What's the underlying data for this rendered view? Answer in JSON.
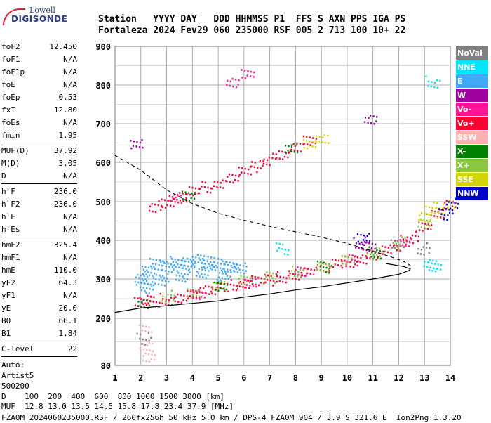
{
  "logo": {
    "line1": "Lowell",
    "line2": "DIGISONDE"
  },
  "header": {
    "row1": "Station   YYYY DAY   DDD HHMMSS P1  FFS S AXN PPS IGA PS",
    "row2": "Fortaleza 2024 Fev29 060 235000 RSF 005 2 713 100 10+ 22"
  },
  "params_group1": [
    {
      "name": "foF2",
      "value": "12.450"
    },
    {
      "name": "foF1",
      "value": "N/A"
    },
    {
      "name": "foF1p",
      "value": "N/A"
    },
    {
      "name": "foE",
      "value": "N/A"
    },
    {
      "name": "foEp",
      "value": "0.53"
    },
    {
      "name": "fxI",
      "value": "12.80"
    },
    {
      "name": "foEs",
      "value": "N/A"
    },
    {
      "name": "fmin",
      "value": "1.95"
    }
  ],
  "params_group2": [
    {
      "name": "MUF(D)",
      "value": "37.92"
    },
    {
      "name": "M(D)",
      "value": "3.05"
    },
    {
      "name": "D",
      "value": "N/A"
    }
  ],
  "params_group3": [
    {
      "name": "h`F",
      "value": "236.0"
    },
    {
      "name": "h`F2",
      "value": "236.0"
    },
    {
      "name": "h`E",
      "value": "N/A"
    },
    {
      "name": "h`Es",
      "value": "N/A"
    }
  ],
  "params_group4": [
    {
      "name": "hmF2",
      "value": "325.4"
    },
    {
      "name": "hmF1",
      "value": "N/A"
    },
    {
      "name": "hmE",
      "value": "110.0"
    },
    {
      "name": "yF2",
      "value": "64.3"
    },
    {
      "name": "yF1",
      "value": "N/A"
    },
    {
      "name": "yE",
      "value": "20.0"
    },
    {
      "name": "B0",
      "value": "66.1"
    },
    {
      "name": "B1",
      "value": "1.84"
    }
  ],
  "params_group5": [
    {
      "name": "C-level",
      "value": "22"
    }
  ],
  "auto": {
    "line1": "Auto:",
    "line2": "Artist5",
    "line3": "500200"
  },
  "legend": [
    {
      "label": "NoVal",
      "color": "#808080"
    },
    {
      "label": "NNE",
      "color": "#00e5ff"
    },
    {
      "label": "E",
      "color": "#3fa9f5"
    },
    {
      "label": "W",
      "color": "#a000a0"
    },
    {
      "label": "Vo-",
      "color": "#ff1493"
    },
    {
      "label": "Vo+",
      "color": "#ff0033"
    },
    {
      "label": "SSW",
      "color": "#ffb0b0"
    },
    {
      "label": "X-",
      "color": "#008000"
    },
    {
      "label": "X+",
      "color": "#8cc63f"
    },
    {
      "label": "SSE",
      "color": "#d4d400"
    },
    {
      "label": "NNW",
      "color": "#0000cc"
    }
  ],
  "footer": {
    "row1": "D    100  200  400  600  800 1000 1500 3000 [km]",
    "row2": "MUF  12.8 13.0 13.5 14.5 15.8 17.8 23.4 37.9 [MHz]",
    "row3": "FZA0M_2024060235000.RSF / 260fx256h 50 kHz 5.0 km / DPS-4 FZA0M 904 / 3.9 S 321.6 E  Ion2Png 1.3.20"
  },
  "chart_data": {
    "type": "scatter",
    "xlim": [
      1,
      14
    ],
    "ylim": [
      80,
      900
    ],
    "x_ticks": [
      1,
      2,
      3,
      4,
      5,
      6,
      7,
      8,
      9,
      10,
      11,
      12,
      13,
      14
    ],
    "y_ticks": [
      80,
      200,
      300,
      400,
      500,
      600,
      700,
      800,
      900
    ],
    "grid": true,
    "series": [
      {
        "name": "Vo+",
        "color": "#ff0033",
        "points": [
          [
            2.0,
            240
          ],
          [
            2.5,
            245
          ],
          [
            3.0,
            250
          ],
          [
            3.5,
            255
          ],
          [
            4.0,
            262
          ],
          [
            4.5,
            270
          ],
          [
            5.0,
            278
          ],
          [
            5.5,
            285
          ],
          [
            6.0,
            290
          ],
          [
            6.5,
            296
          ],
          [
            7.0,
            300
          ],
          [
            7.5,
            308
          ],
          [
            8.0,
            315
          ],
          [
            8.5,
            322
          ],
          [
            9.0,
            330
          ],
          [
            9.5,
            338
          ],
          [
            10.0,
            346
          ],
          [
            10.5,
            355
          ],
          [
            11.0,
            364
          ],
          [
            11.5,
            375
          ],
          [
            12.0,
            390
          ],
          [
            12.5,
            410
          ],
          [
            13.0,
            440
          ],
          [
            13.5,
            470
          ],
          [
            14.0,
            490
          ]
        ]
      },
      {
        "name": "Vo+",
        "color": "#ff0033",
        "points": [
          [
            2.5,
            490
          ],
          [
            3.0,
            500
          ],
          [
            3.5,
            512
          ],
          [
            4.0,
            525
          ],
          [
            4.5,
            538
          ],
          [
            5.0,
            550
          ],
          [
            5.5,
            562
          ],
          [
            6.0,
            578
          ],
          [
            6.5,
            592
          ],
          [
            7.0,
            610
          ],
          [
            7.5,
            625
          ],
          [
            8.0,
            640
          ],
          [
            8.5,
            655
          ]
        ]
      },
      {
        "name": "E",
        "color": "#3fa9f5",
        "points": [
          [
            2.0,
            300
          ],
          [
            2.3,
            320
          ],
          [
            2.6,
            340
          ],
          [
            3.0,
            335
          ],
          [
            3.4,
            345
          ],
          [
            3.8,
            340
          ],
          [
            4.2,
            350
          ],
          [
            4.6,
            345
          ],
          [
            5.0,
            340
          ],
          [
            5.4,
            335
          ],
          [
            5.8,
            328
          ],
          [
            2.2,
            280
          ],
          [
            2.8,
            300
          ],
          [
            3.6,
            310
          ],
          [
            4.4,
            320
          ],
          [
            5.2,
            310
          ]
        ]
      },
      {
        "name": "X+",
        "color": "#8cc63f",
        "points": [
          [
            3.0,
            258
          ],
          [
            4.0,
            268
          ],
          [
            5.0,
            285
          ],
          [
            6.0,
            295
          ],
          [
            7.0,
            305
          ],
          [
            8.0,
            320
          ],
          [
            9.0,
            334
          ],
          [
            10.0,
            350
          ],
          [
            11.0,
            368
          ],
          [
            12.0,
            395
          ],
          [
            13.0,
            450
          ]
        ]
      },
      {
        "name": "SSE",
        "color": "#d4d400",
        "points": [
          [
            13.0,
            460
          ],
          [
            13.3,
            475
          ],
          [
            13.6,
            485
          ],
          [
            13.9,
            495
          ],
          [
            8.5,
            650
          ],
          [
            9.0,
            660
          ]
        ]
      },
      {
        "name": "Vo-",
        "color": "#ff1493",
        "points": [
          [
            2.2,
            242
          ],
          [
            4.2,
            265
          ],
          [
            6.2,
            292
          ],
          [
            8.2,
            318
          ],
          [
            10.2,
            350
          ],
          [
            12.2,
            400
          ],
          [
            5.5,
            810
          ],
          [
            6.1,
            830
          ],
          [
            3.3,
            505
          ]
        ]
      },
      {
        "name": "X-",
        "color": "#008000",
        "points": [
          [
            2.1,
            238
          ],
          [
            5.1,
            279
          ],
          [
            9.1,
            333
          ],
          [
            11.1,
            370
          ],
          [
            3.8,
            518
          ],
          [
            7.8,
            636
          ]
        ]
      },
      {
        "name": "W",
        "color": "#a000a0",
        "points": [
          [
            10.5,
            395
          ],
          [
            10.8,
            390
          ],
          [
            1.8,
            650
          ],
          [
            10.9,
            710
          ]
        ]
      },
      {
        "name": "NNE",
        "color": "#00e5ff",
        "points": [
          [
            13.2,
            340
          ],
          [
            13.4,
            330
          ],
          [
            7.5,
            380
          ],
          [
            13.3,
            810
          ]
        ]
      },
      {
        "name": "NNW",
        "color": "#0000cc",
        "points": [
          [
            13.8,
            470
          ],
          [
            14.0,
            495
          ],
          [
            10.6,
            410
          ]
        ]
      },
      {
        "name": "SSW",
        "color": "#ffb0b0",
        "points": [
          [
            2.2,
            130
          ],
          [
            2.3,
            100
          ],
          [
            2.2,
            170
          ]
        ]
      },
      {
        "name": "NoVal",
        "color": "#808080",
        "points": [
          [
            2.1,
            150
          ],
          [
            12.9,
            380
          ],
          [
            11.9,
            395
          ]
        ]
      }
    ],
    "profile_line": [
      [
        1.0,
        215
      ],
      [
        2.0,
        226
      ],
      [
        3.0,
        232
      ],
      [
        4.0,
        238
      ],
      [
        5.0,
        244
      ],
      [
        6.0,
        254
      ],
      [
        7.0,
        262
      ],
      [
        8.0,
        272
      ],
      [
        9.0,
        280
      ],
      [
        10.0,
        290
      ],
      [
        11.0,
        300
      ],
      [
        12.0,
        312
      ],
      [
        12.4,
        322
      ],
      [
        12.45,
        326
      ],
      [
        12.2,
        332
      ],
      [
        11.5,
        340
      ]
    ],
    "dashed_line": [
      [
        1.0,
        618
      ],
      [
        2.0,
        580
      ],
      [
        3.0,
        530
      ],
      [
        4.0,
        495
      ],
      [
        5.0,
        470
      ],
      [
        6.0,
        452
      ],
      [
        7.0,
        436
      ],
      [
        8.0,
        422
      ],
      [
        9.0,
        408
      ],
      [
        10.0,
        392
      ],
      [
        11.0,
        372
      ],
      [
        11.8,
        355
      ],
      [
        12.2,
        345
      ],
      [
        12.45,
        335
      ]
    ]
  }
}
